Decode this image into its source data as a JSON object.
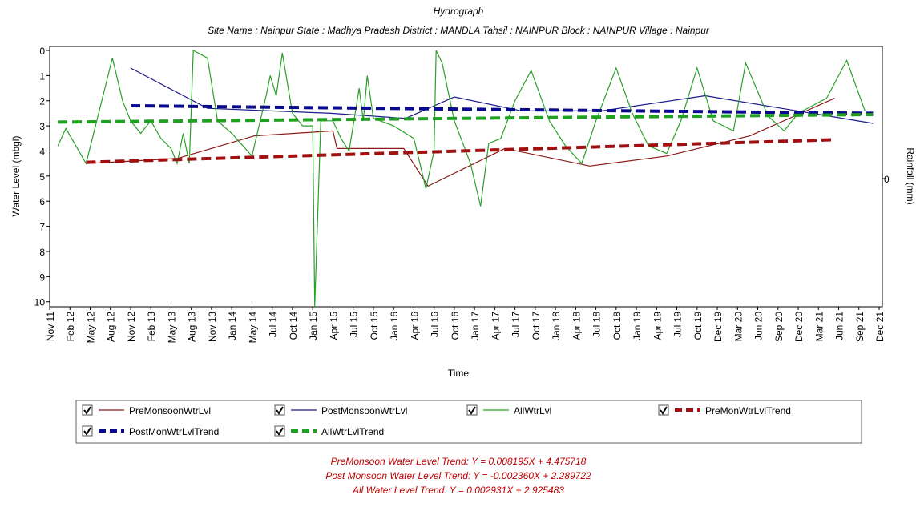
{
  "chart_data": {
    "type": "line",
    "title": "Hydrograph",
    "subtitle": "Site Name : Nainpur  State : Madhya Pradesh District : MANDLA  Tahsil : NAINPUR  Block : NAINPUR Village : Nainpur",
    "x_label": "Time",
    "y_label": "Water Level (mbgl)",
    "y2_label": "Rainfall (mm)",
    "xlim": [
      0,
      41
    ],
    "xticks": [
      {
        "value": 0,
        "label": "Nov 11"
      },
      {
        "value": 1,
        "label": "Feb 12"
      },
      {
        "value": 2,
        "label": "May 12"
      },
      {
        "value": 3,
        "label": "Aug 12"
      },
      {
        "value": 4,
        "label": "Nov 12"
      },
      {
        "value": 5,
        "label": "Feb 13"
      },
      {
        "value": 6,
        "label": "May 13"
      },
      {
        "value": 7,
        "label": "Aug 13"
      },
      {
        "value": 8,
        "label": "Nov 13"
      },
      {
        "value": 9,
        "label": "Jan 14"
      },
      {
        "value": 10,
        "label": "May 14"
      },
      {
        "value": 11,
        "label": "Jul 14"
      },
      {
        "value": 12,
        "label": "Oct 14"
      },
      {
        "value": 13,
        "label": "Jan 15"
      },
      {
        "value": 14,
        "label": "Apr 15"
      },
      {
        "value": 15,
        "label": "Jul 15"
      },
      {
        "value": 16,
        "label": "Oct 15"
      },
      {
        "value": 17,
        "label": "Jan 16"
      },
      {
        "value": 18,
        "label": "Apr 16"
      },
      {
        "value": 19,
        "label": "Jul 16"
      },
      {
        "value": 20,
        "label": "Oct 16"
      },
      {
        "value": 21,
        "label": "Jan 17"
      },
      {
        "value": 22,
        "label": "Apr 17"
      },
      {
        "value": 23,
        "label": "Jul 17"
      },
      {
        "value": 24,
        "label": "Oct 17"
      },
      {
        "value": 25,
        "label": "Jan 18"
      },
      {
        "value": 26,
        "label": "Apr 18"
      },
      {
        "value": 27,
        "label": "Jul 18"
      },
      {
        "value": 28,
        "label": "Oct 18"
      },
      {
        "value": 29,
        "label": "Jan 19"
      },
      {
        "value": 30,
        "label": "Apr 19"
      },
      {
        "value": 31,
        "label": "Jul 19"
      },
      {
        "value": 32,
        "label": "Oct 19"
      },
      {
        "value": 33,
        "label": "Dec 19"
      },
      {
        "value": 34,
        "label": "Mar 20"
      },
      {
        "value": 35,
        "label": "Jun 20"
      },
      {
        "value": 36,
        "label": "Sep 20"
      },
      {
        "value": 37,
        "label": "Dec 20"
      },
      {
        "value": 38,
        "label": "Mar 21"
      },
      {
        "value": 39,
        "label": "Jun 21"
      },
      {
        "value": 40,
        "label": "Sep 21"
      },
      {
        "value": 41,
        "label": "Dec 21"
      }
    ],
    "ylim": [
      0,
      10.2
    ],
    "yticks": [
      0,
      1,
      2,
      3,
      4,
      5,
      6,
      7,
      8,
      9,
      10
    ],
    "y_inverted": true,
    "y2lim": [
      -1,
      1
    ],
    "y2ticks": [
      0
    ],
    "series": [
      {
        "name": "PreMonsoonWtrLvl",
        "color": "#8b1a1a",
        "dashed": false,
        "x": [
          1.8,
          6.3,
          10.1,
          14.0,
          14.2,
          17.5,
          18.7,
          22.5,
          26.7,
          30.5,
          34.6,
          38.8
        ],
        "values": [
          4.5,
          4.3,
          3.4,
          3.2,
          3.9,
          3.9,
          5.4,
          3.9,
          4.6,
          4.2,
          3.4,
          1.9
        ]
      },
      {
        "name": "PostMonsoonWtrLvl",
        "color": "#1a1a8b",
        "dashed": false,
        "x": [
          4.0,
          7.8,
          13.9,
          17.6,
          20.0,
          23.3,
          27.3,
          32.4,
          40.7
        ],
        "values": [
          0.7,
          2.3,
          2.5,
          2.7,
          1.85,
          2.4,
          2.4,
          1.8,
          2.9
        ]
      },
      {
        "name": "AllWtrLvl",
        "color": "#2aa02a",
        "dashed": false,
        "x": [
          0.4,
          0.8,
          1.8,
          3.1,
          3.6,
          4.0,
          4.5,
          5.0,
          5.5,
          6.0,
          6.3,
          6.6,
          6.9,
          7.1,
          7.8,
          8.3,
          9.0,
          10.0,
          10.7,
          10.9,
          11.2,
          11.5,
          12.0,
          12.5,
          13.0,
          13.1,
          13.4,
          14.0,
          14.4,
          14.8,
          15.3,
          15.5,
          15.7,
          16.0,
          17.0,
          18.0,
          18.6,
          19.0,
          19.1,
          19.4,
          20.0,
          20.8,
          21.3,
          21.7,
          22.3,
          23.0,
          23.8,
          24.7,
          25.5,
          26.3,
          27.0,
          28.0,
          28.8,
          29.6,
          30.5,
          31.2,
          32.0,
          32.8,
          33.8,
          34.4,
          35.5,
          36.3,
          37.0,
          38.4,
          39.4,
          40.3
        ],
        "values": [
          3.8,
          3.1,
          4.5,
          0.3,
          2.0,
          2.8,
          3.3,
          2.8,
          3.5,
          3.9,
          4.5,
          3.3,
          4.5,
          0,
          0.3,
          2.8,
          3.3,
          4.2,
          1.8,
          1.0,
          1.8,
          0.1,
          2.5,
          3.0,
          3.0,
          10.2,
          2.8,
          2.8,
          3.5,
          4.0,
          1.5,
          2.8,
          1.0,
          2.7,
          3.0,
          3.5,
          5.5,
          4.0,
          0,
          0.5,
          2.8,
          4.5,
          6.2,
          3.7,
          3.5,
          2.0,
          0.8,
          2.8,
          3.8,
          4.5,
          2.8,
          0.7,
          2.5,
          3.8,
          4.1,
          2.8,
          0.7,
          2.8,
          3.2,
          0.5,
          2.6,
          3.2,
          2.5,
          1.9,
          0.4,
          2.4
        ]
      },
      {
        "name": "PreMonWtrLvlTrend",
        "color": "#a01010",
        "dashed": true,
        "x": [
          1.8,
          38.8
        ],
        "values": [
          4.45,
          3.55
        ]
      },
      {
        "name": "PostMonWtrLvlTrend",
        "color": "#0a0a90",
        "dashed": true,
        "x": [
          4.0,
          40.7
        ],
        "values": [
          2.2,
          2.5
        ]
      },
      {
        "name": "AllWtrLvlTrend",
        "color": "#20a020",
        "dashed": true,
        "x": [
          0.4,
          40.7
        ],
        "values": [
          2.85,
          2.55
        ]
      }
    ],
    "annotations": [
      "PreMonsoon Water Level Trend: Y = 0.008195X + 4.475718",
      "Post Monsoon Water Level Trend: Y = -0.002360X + 2.289722",
      "All Water Level Trend: Y = 0.002931X + 2.925483"
    ]
  }
}
